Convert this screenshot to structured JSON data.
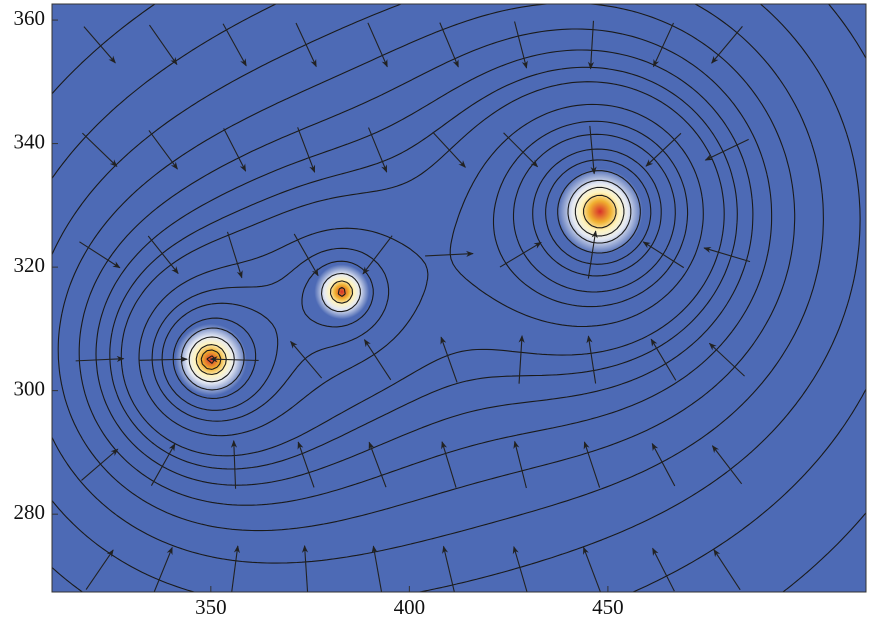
{
  "chart_data": {
    "type": "contour",
    "xlim": [
      310,
      515
    ],
    "ylim": [
      267.4,
      362.6
    ],
    "xticks": [
      350,
      400,
      450
    ],
    "yticks": [
      280,
      300,
      320,
      340,
      360
    ],
    "background": "#4d6ab5",
    "sources": [
      {
        "x": 350,
        "y": 305,
        "strength": 1.0
      },
      {
        "x": 383,
        "y": 316,
        "strength": 0.45
      },
      {
        "x": 448,
        "y": 329,
        "strength": 1.6
      }
    ],
    "levels": [
      0.006,
      0.007,
      0.008,
      0.009,
      0.01,
      0.011,
      0.012,
      0.013,
      0.014,
      0.016,
      0.018,
      0.02,
      0.023,
      0.026,
      0.03,
      0.035,
      0.04,
      0.048
    ],
    "quiver": {
      "x": [
        322,
        338,
        356,
        374,
        392,
        410,
        428,
        446,
        464,
        480
      ],
      "y": [
        271,
        288,
        305,
        322,
        339,
        356
      ]
    }
  }
}
